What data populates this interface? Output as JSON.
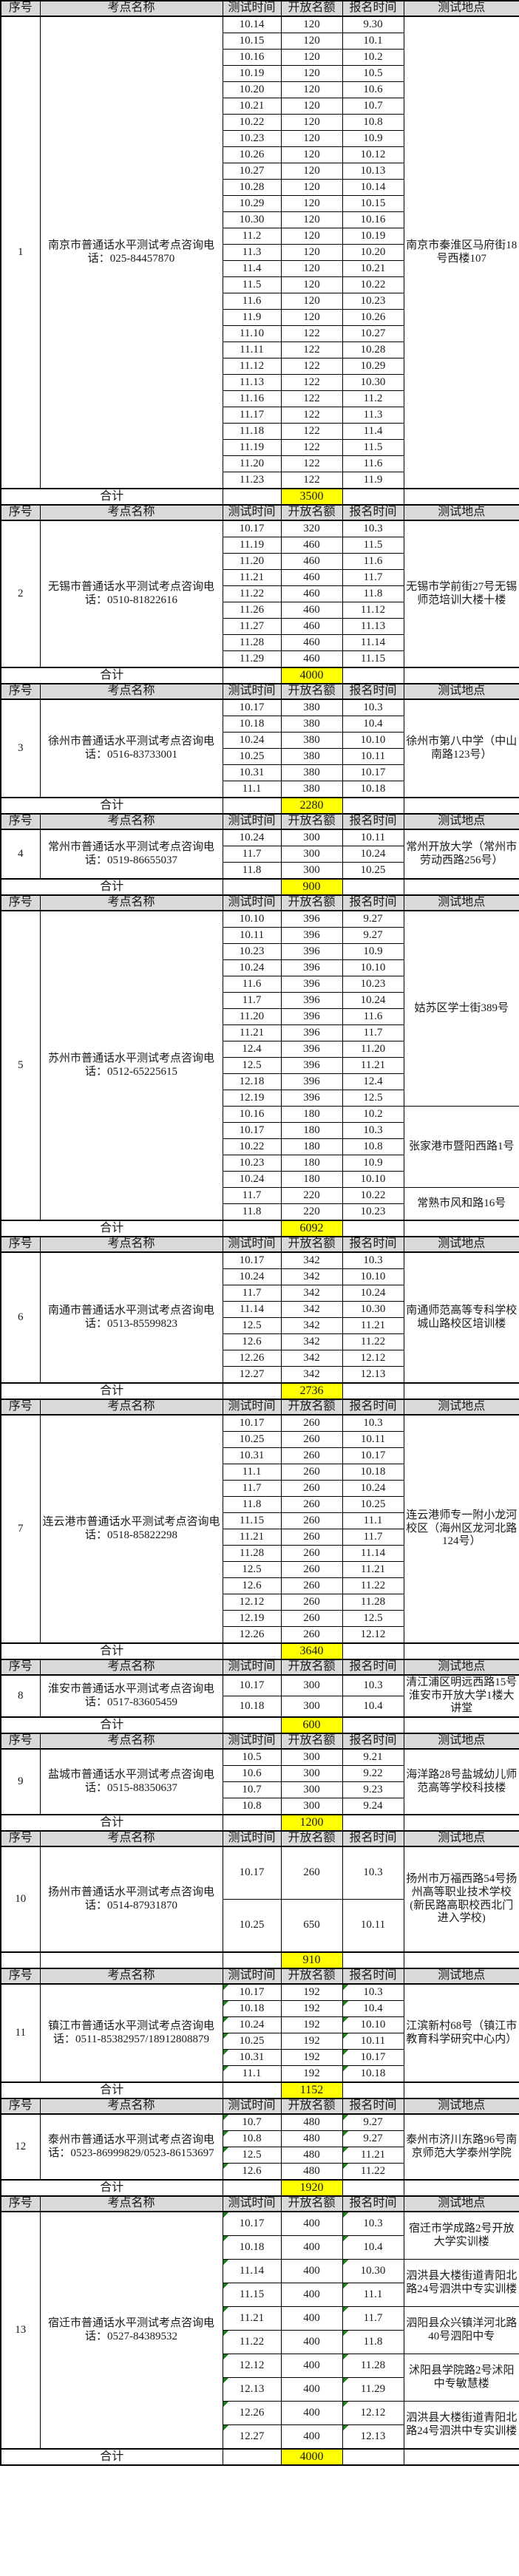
{
  "table": {
    "columns": [
      "序号",
      "考点名称",
      "测试时间",
      "开放名额",
      "报名时间",
      "测试地点"
    ],
    "colors": {
      "header_bg": "#d9d9d9",
      "total_highlight": "#ffff00",
      "corner_marker_green": "#1e7e1e"
    },
    "sections": [
      {
        "no": "1",
        "name": "南京市普通话水平测试考点咨询电话：025-84457870",
        "total_label": "合计",
        "total": "3500",
        "markers": false,
        "groups": [
          {
            "location": "南京市秦淮区马府街18号西楼107",
            "rows": [
              [
                "10.14",
                "120",
                "9.30"
              ],
              [
                "10.15",
                "120",
                "10.1"
              ],
              [
                "10.16",
                "120",
                "10.2"
              ],
              [
                "10.19",
                "120",
                "10.5"
              ],
              [
                "10.20",
                "120",
                "10.6"
              ],
              [
                "10.21",
                "120",
                "10.7"
              ],
              [
                "10.22",
                "120",
                "10.8"
              ],
              [
                "10.23",
                "120",
                "10.9"
              ],
              [
                "10.26",
                "120",
                "10.12"
              ],
              [
                "10.27",
                "120",
                "10.13"
              ],
              [
                "10.28",
                "120",
                "10.14"
              ],
              [
                "10.29",
                "120",
                "10.15"
              ],
              [
                "10.30",
                "120",
                "10.16"
              ],
              [
                "11.2",
                "120",
                "10.19"
              ],
              [
                "11.3",
                "120",
                "10.20"
              ],
              [
                "11.4",
                "120",
                "10.21"
              ],
              [
                "11.5",
                "120",
                "10.22"
              ],
              [
                "11.6",
                "120",
                "10.23"
              ],
              [
                "11.9",
                "120",
                "10.26"
              ],
              [
                "11.10",
                "122",
                "10.27"
              ],
              [
                "11.11",
                "122",
                "10.28"
              ],
              [
                "11.12",
                "122",
                "10.29"
              ],
              [
                "11.13",
                "122",
                "10.30"
              ],
              [
                "11.16",
                "122",
                "11.2"
              ],
              [
                "11.17",
                "122",
                "11.3"
              ],
              [
                "11.18",
                "122",
                "11.4"
              ],
              [
                "11.19",
                "122",
                "11.5"
              ],
              [
                "11.20",
                "122",
                "11.6"
              ],
              [
                "11.23",
                "122",
                "11.9"
              ]
            ]
          }
        ]
      },
      {
        "no": "2",
        "name": "无锡市普通话水平测试考点咨询电话：0510-81822616",
        "total_label": "合计",
        "total": "4000",
        "markers": false,
        "groups": [
          {
            "location": "无锡市学前街27号无锡师范培训大楼十楼",
            "rows": [
              [
                "10.17",
                "320",
                "10.3"
              ],
              [
                "11.19",
                "460",
                "11.5"
              ],
              [
                "11.20",
                "460",
                "11.6"
              ],
              [
                "11.21",
                "460",
                "11.7"
              ],
              [
                "11.22",
                "460",
                "11.8"
              ],
              [
                "11.26",
                "460",
                "11.12"
              ],
              [
                "11.27",
                "460",
                "11.13"
              ],
              [
                "11.28",
                "460",
                "11.14"
              ],
              [
                "11.29",
                "460",
                "11.15"
              ]
            ]
          }
        ]
      },
      {
        "no": "3",
        "name": "徐州市普通话水平测试考点咨询电话：0516-83733001",
        "total_label": "合计",
        "total": "2280",
        "markers": false,
        "groups": [
          {
            "location": "徐州市第八中学（中山南路123号）",
            "rows": [
              [
                "10.17",
                "380",
                "10.3"
              ],
              [
                "10.18",
                "380",
                "10.4"
              ],
              [
                "10.24",
                "380",
                "10.10"
              ],
              [
                "10.25",
                "380",
                "10.11"
              ],
              [
                "10.31",
                "380",
                "10.17"
              ],
              [
                "11.1",
                "380",
                "10.18"
              ]
            ]
          }
        ]
      },
      {
        "no": "4",
        "name": "常州市普通话水平测试考点咨询电话：0519-86655037",
        "total_label": "合计",
        "total": "900",
        "markers": false,
        "groups": [
          {
            "location": "常州开放大学（常州市劳动西路256号）",
            "rows": [
              [
                "10.24",
                "300",
                "10.11"
              ],
              [
                "11.7",
                "300",
                "10.24"
              ],
              [
                "11.8",
                "300",
                "10.25"
              ]
            ]
          }
        ]
      },
      {
        "no": "5",
        "name": "苏州市普通话水平测试考点咨询电话：0512-65225615",
        "total_label": "合计",
        "total": "6092",
        "markers": false,
        "groups": [
          {
            "location": "姑苏区学士街389号",
            "rows": [
              [
                "10.10",
                "396",
                "9.27"
              ],
              [
                "10.11",
                "396",
                "9.27"
              ],
              [
                "10.23",
                "396",
                "10.9"
              ],
              [
                "10.24",
                "396",
                "10.10"
              ],
              [
                "11.6",
                "396",
                "10.23"
              ],
              [
                "11.7",
                "396",
                "10.24"
              ],
              [
                "11.20",
                "396",
                "11.6"
              ],
              [
                "11.21",
                "396",
                "11.7"
              ],
              [
                "12.4",
                "396",
                "11.20"
              ],
              [
                "12.5",
                "396",
                "11.21"
              ],
              [
                "12.18",
                "396",
                "12.4"
              ],
              [
                "12.19",
                "396",
                "12.5"
              ]
            ]
          },
          {
            "location": "张家港市暨阳西路1号",
            "rows": [
              [
                "10.16",
                "180",
                "10.2"
              ],
              [
                "10.17",
                "180",
                "10.3"
              ],
              [
                "10.22",
                "180",
                "10.8"
              ],
              [
                "10.23",
                "180",
                "10.9"
              ],
              [
                "10.24",
                "180",
                "10.10"
              ]
            ]
          },
          {
            "location": "常熟市风和路16号",
            "rows": [
              [
                "11.7",
                "220",
                "10.22"
              ],
              [
                "11.8",
                "220",
                "10.23"
              ]
            ]
          }
        ]
      },
      {
        "no": "6",
        "name": "南通市普通话水平测试考点咨询电话：0513-85599823",
        "total_label": "合计",
        "total": "2736",
        "markers": false,
        "groups": [
          {
            "location": "南通师范高等专科学校城山路校区培训楼",
            "rows": [
              [
                "10.17",
                "342",
                "10.3"
              ],
              [
                "10.24",
                "342",
                "10.10"
              ],
              [
                "11.7",
                "342",
                "10.24"
              ],
              [
                "11.14",
                "342",
                "10.30"
              ],
              [
                "12.5",
                "342",
                "11.21"
              ],
              [
                "12.6",
                "342",
                "11.22"
              ],
              [
                "12.26",
                "342",
                "12.12"
              ],
              [
                "12.27",
                "342",
                "12.13"
              ]
            ]
          }
        ]
      },
      {
        "no": "7",
        "name": "连云港市普通话水平测试考点咨询电话：0518-85822298",
        "total_label": "合计",
        "total": "3640",
        "markers": false,
        "groups": [
          {
            "location": "连云港师专一附小龙河校区（海州区龙河北路124号）",
            "rows": [
              [
                "10.17",
                "260",
                "10.3"
              ],
              [
                "10.25",
                "260",
                "10.11"
              ],
              [
                "10.31",
                "260",
                "10.17"
              ],
              [
                "11.1",
                "260",
                "10.18"
              ],
              [
                "11.7",
                "260",
                "10.24"
              ],
              [
                "11.8",
                "260",
                "10.25"
              ],
              [
                "11.15",
                "260",
                "11.1"
              ],
              [
                "11.21",
                "260",
                "11.7"
              ],
              [
                "11.28",
                "260",
                "11.14"
              ],
              [
                "12.5",
                "260",
                "11.21"
              ],
              [
                "12.6",
                "260",
                "11.22"
              ],
              [
                "12.12",
                "260",
                "11.28"
              ],
              [
                "12.19",
                "260",
                "12.5"
              ],
              [
                "12.26",
                "260",
                "12.12"
              ]
            ]
          }
        ]
      },
      {
        "no": "8",
        "name": "淮安市普通话水平测试考点咨询电话：0517-83605459",
        "total_label": "合计",
        "total": "600",
        "markers": false,
        "groups": [
          {
            "location": "清江浦区明远西路15号淮安市开放大学1楼大讲堂",
            "rows": [
              [
                "10.17",
                "300",
                "10.3"
              ],
              [
                "10.18",
                "300",
                "10.4"
              ]
            ]
          }
        ]
      },
      {
        "no": "9",
        "name": "盐城市普通话水平测试考点咨询电话：0515-88350637",
        "total_label": "合计",
        "total": "1200",
        "markers": false,
        "groups": [
          {
            "location": "海洋路28号盐城幼儿师范高等学校科技楼",
            "rows": [
              [
                "10.5",
                "300",
                "9.21"
              ],
              [
                "10.6",
                "300",
                "9.22"
              ],
              [
                "10.7",
                "300",
                "9.23"
              ],
              [
                "10.8",
                "300",
                "9.24"
              ]
            ]
          }
        ]
      },
      {
        "no": "10",
        "name": "扬州市普通话水平测试考点咨询电话：0514-87931870",
        "total_label": "",
        "total": "910",
        "markers": false,
        "groups": [
          {
            "location": "扬州市万福西路54号扬州高等职业技术学校(新民路高职校西北门进入学校)",
            "rows": [
              [
                "10.17",
                "260",
                "10.3"
              ],
              [
                "10.25",
                "650",
                "10.11"
              ]
            ]
          }
        ]
      },
      {
        "no": "11",
        "name": "镇江市普通话水平测试考点咨询电话：0511-85382957/18912808879",
        "total_label": "合计",
        "total": "1152",
        "markers": true,
        "groups": [
          {
            "location": "江滨新村68号（镇江市教育科学研究中心内）",
            "rows": [
              [
                "10.17",
                "192",
                "10.3"
              ],
              [
                "10.18",
                "192",
                "10.4"
              ],
              [
                "10.24",
                "192",
                "10.10"
              ],
              [
                "10.25",
                "192",
                "10.11"
              ],
              [
                "10.31",
                "192",
                "10.17"
              ],
              [
                "11.1",
                "192",
                "10.18"
              ]
            ]
          }
        ]
      },
      {
        "no": "12",
        "name": "泰州市普通话水平测试考点咨询电话：0523-86999829/0523-86153697",
        "total_label": "合计",
        "total": "1920",
        "markers": true,
        "groups": [
          {
            "location": "泰州市济川东路96号南京师范大学泰州学院",
            "rows": [
              [
                "10.7",
                "480",
                "9.27"
              ],
              [
                "10.8",
                "480",
                "9.27"
              ],
              [
                "12.5",
                "480",
                "11.21"
              ],
              [
                "12.6",
                "480",
                "11.22"
              ]
            ]
          }
        ]
      },
      {
        "no": "13",
        "name": "宿迁市普通话水平测试考点咨询电话：0527-84389532",
        "total_label": "合计",
        "total": "4000",
        "markers": true,
        "groups": [
          {
            "location": "宿迁市学成路2号开放大学实训楼",
            "rows": [
              [
                "10.17",
                "400",
                "10.3"
              ],
              [
                "10.18",
                "400",
                "10.4"
              ]
            ]
          },
          {
            "location": "泗洪县大楼街道青阳北路24号泗洪中专实训楼",
            "rows": [
              [
                "11.14",
                "400",
                "10.30"
              ],
              [
                "11.15",
                "400",
                "11.1"
              ]
            ]
          },
          {
            "location": "泗阳县众兴镇洋河北路40号泗阳中专",
            "rows": [
              [
                "11.21",
                "400",
                "11.7"
              ],
              [
                "11.22",
                "400",
                "11.8"
              ]
            ]
          },
          {
            "location": "沭阳县学院路2号沭阳中专敏慧楼",
            "rows": [
              [
                "12.12",
                "400",
                "11.28"
              ],
              [
                "12.13",
                "400",
                "11.29"
              ]
            ]
          },
          {
            "location": "泗洪县大楼街道青阳北路24号泗洪中专实训楼",
            "rows": [
              [
                "12.26",
                "400",
                "12.12"
              ],
              [
                "12.27",
                "400",
                "12.13"
              ]
            ]
          }
        ]
      }
    ]
  }
}
